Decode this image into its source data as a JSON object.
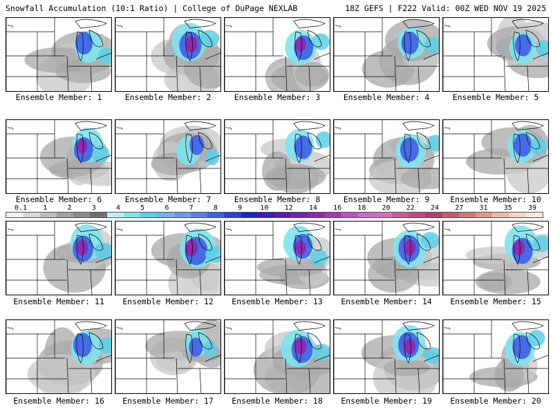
{
  "header": {
    "left_title": "Snowfall Accumulation (10:1 Ratio) | College of DuPage NEXLAB",
    "right_title": "18Z GEFS | F222 Valid: 00Z WED NOV 19 2025"
  },
  "panels": [
    {
      "label": "Ensemble Member: 1",
      "intensity": 0.45
    },
    {
      "label": "Ensemble Member: 2",
      "intensity": 0.8
    },
    {
      "label": "Ensemble Member: 3",
      "intensity": 0.6
    },
    {
      "label": "Ensemble Member: 4",
      "intensity": 0.45
    },
    {
      "label": "Ensemble Member: 5",
      "intensity": 0.4
    },
    {
      "label": "Ensemble Member: 6",
      "intensity": 0.6
    },
    {
      "label": "Ensemble Member: 7",
      "intensity": 0.25
    },
    {
      "label": "Ensemble Member: 8",
      "intensity": 0.5
    },
    {
      "label": "Ensemble Member: 9",
      "intensity": 0.55
    },
    {
      "label": "Ensemble Member: 10",
      "intensity": 0.5
    },
    {
      "label": "Ensemble Member: 11",
      "intensity": 0.7
    },
    {
      "label": "Ensemble Member: 12",
      "intensity": 0.85
    },
    {
      "label": "Ensemble Member: 13",
      "intensity": 0.6
    },
    {
      "label": "Ensemble Member: 14",
      "intensity": 0.75
    },
    {
      "label": "Ensemble Member: 15",
      "intensity": 0.7
    },
    {
      "label": "Ensemble Member: 16",
      "intensity": 0.55
    },
    {
      "label": "Ensemble Member: 17",
      "intensity": 0.2
    },
    {
      "label": "Ensemble Member: 18",
      "intensity": 0.75
    },
    {
      "label": "Ensemble Member: 19",
      "intensity": 0.7
    },
    {
      "label": "Ensemble Member: 20",
      "intensity": 0.55
    }
  ],
  "colorbar": {
    "labels": [
      "0.1",
      "1",
      "2",
      "3",
      "4",
      "5",
      "6",
      "7",
      "8",
      "9",
      "10",
      "12",
      "14",
      "16",
      "18",
      "20",
      "22",
      "24",
      "27",
      "31",
      "35",
      "39"
    ],
    "colors": [
      "#f0f0f0",
      "#d8d8d8",
      "#bdbdbd",
      "#a2a2a2",
      "#8a8a8a",
      "#6e6e6e",
      "#b8f0f4",
      "#7fe3ee",
      "#5ccfe8",
      "#6fb2ec",
      "#6a98ea",
      "#5a7ee8",
      "#3e5fe6",
      "#2a3ee0",
      "#1a22d8",
      "#3a18c8",
      "#5a1ab4",
      "#7420aa",
      "#9226aa",
      "#a838b8",
      "#bc52c4",
      "#cc68cc",
      "#d46eb8",
      "#cc5a9a",
      "#c24880",
      "#b83a6a",
      "#c45a6a",
      "#d07870",
      "#e09888",
      "#ecb8a6",
      "#f4d4c4",
      "#faeade"
    ]
  }
}
